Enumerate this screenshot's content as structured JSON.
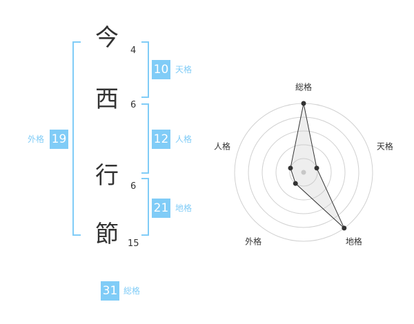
{
  "name": {
    "chars": [
      {
        "char": "今",
        "strokes": "4"
      },
      {
        "char": "西",
        "strokes": "6"
      },
      {
        "char": "行",
        "strokes": "6"
      },
      {
        "char": "節",
        "strokes": "15"
      }
    ]
  },
  "kaku": {
    "tenkaku": {
      "value": "10",
      "label": "天格"
    },
    "jinkaku": {
      "value": "12",
      "label": "人格"
    },
    "chikaku": {
      "value": "21",
      "label": "地格"
    },
    "gaikaku": {
      "value": "19",
      "label": "外格"
    },
    "soukaku": {
      "value": "31",
      "label": "総格"
    }
  },
  "accent_color": "#80ccf7",
  "chart_data": {
    "type": "radar",
    "axes": [
      "総格",
      "天格",
      "地格",
      "外格",
      "人格"
    ],
    "values": [
      5,
      1,
      5,
      1,
      1
    ],
    "range": [
      0,
      5
    ],
    "rings": 5
  }
}
